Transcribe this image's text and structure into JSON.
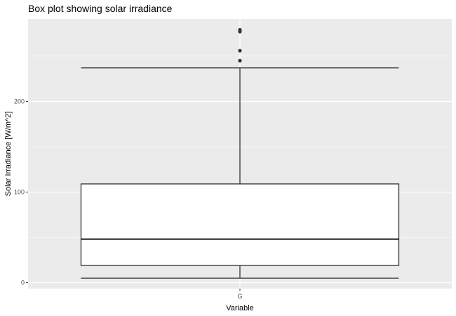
{
  "chart_data": {
    "type": "box",
    "title": "Box plot showing solar irradiance",
    "xlabel": "Variable",
    "ylabel": "Solar Irradiance [W/m^2]",
    "categories": [
      "G"
    ],
    "boxes": [
      {
        "category": "G",
        "min": 5,
        "q1": 19,
        "median": 48,
        "q3": 109,
        "max": 237,
        "outliers": [
          245,
          256,
          277,
          279
        ]
      }
    ],
    "ylim": [
      -6.5,
      291
    ],
    "yticks": [
      0,
      100,
      200
    ],
    "grid": true,
    "colors": {
      "panel": "#ebebeb",
      "grid_major": "#ffffff",
      "box_fill": "#ffffff",
      "box_line": "#333333",
      "outlier": "#333333"
    }
  }
}
